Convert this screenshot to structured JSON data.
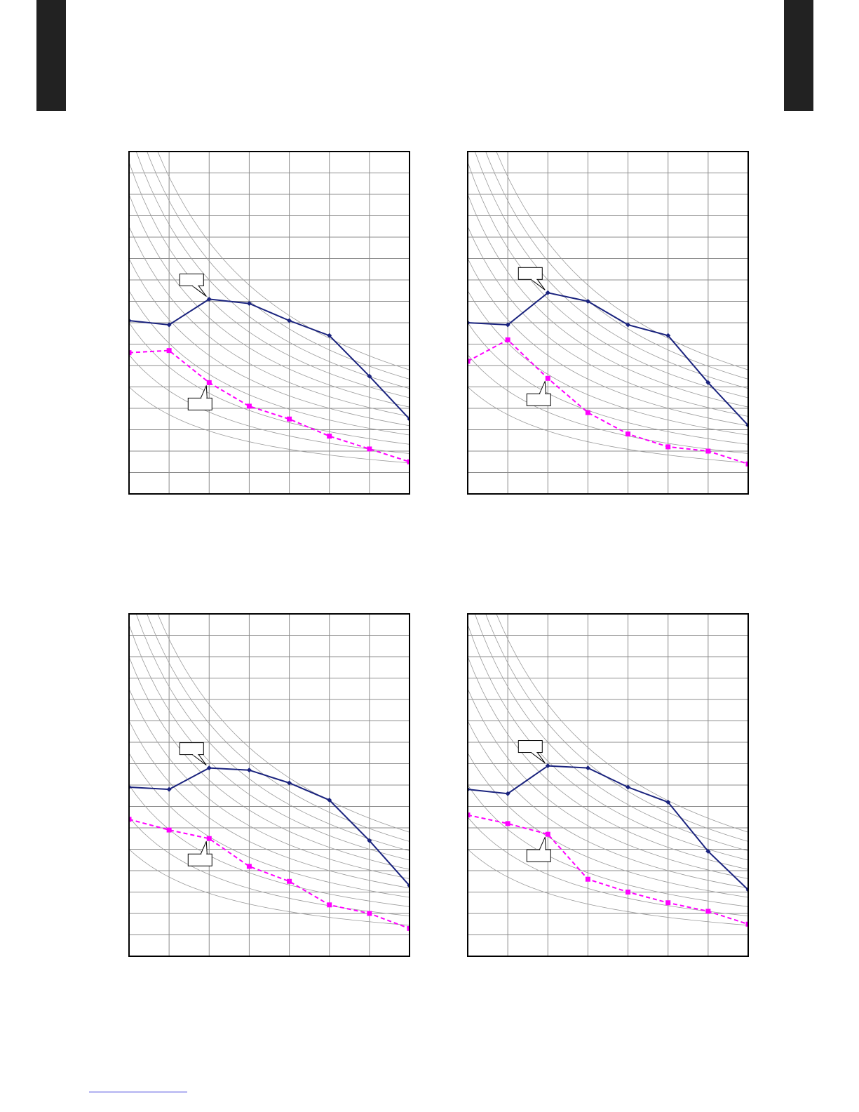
{
  "page": {
    "colors": {
      "tab": "#222222",
      "frame": "#000000",
      "grid": "#8c8c8c",
      "curves": "#9a9a9a",
      "series_a": "#1a237e",
      "series_b": "#ff00ff",
      "link_line": "#2b2bd8"
    }
  },
  "chart_data": [
    {
      "type": "line",
      "title": "",
      "xlabel": "",
      "ylabel": "",
      "x": [
        0,
        1,
        2,
        3,
        4,
        5,
        6,
        7
      ],
      "xlim": [
        0,
        7
      ],
      "ylim": [
        0,
        16
      ],
      "grid": true,
      "background_curves": true,
      "series": [
        {
          "values": [
            8.1,
            7.9,
            9.1,
            8.9,
            8.1,
            7.4,
            5.5,
            3.5
          ],
          "line": "solid",
          "marker": "diamond"
        },
        {
          "values": [
            6.6,
            6.7,
            5.2,
            4.1,
            3.5,
            2.7,
            2.1,
            1.5
          ],
          "line": "dashed",
          "marker": "square"
        }
      ],
      "callouts": [
        {
          "series": 0,
          "text": ""
        },
        {
          "series": 1,
          "text": ""
        }
      ]
    },
    {
      "type": "line",
      "title": "",
      "xlabel": "",
      "ylabel": "",
      "x": [
        0,
        1,
        2,
        3,
        4,
        5,
        6,
        7
      ],
      "xlim": [
        0,
        7
      ],
      "ylim": [
        0,
        16
      ],
      "grid": true,
      "background_curves": true,
      "series": [
        {
          "values": [
            8.0,
            7.9,
            9.4,
            9.0,
            7.9,
            7.4,
            5.2,
            3.2
          ],
          "line": "solid",
          "marker": "diamond"
        },
        {
          "values": [
            6.2,
            7.2,
            5.4,
            3.8,
            2.8,
            2.2,
            2.0,
            1.4
          ],
          "line": "dashed",
          "marker": "square"
        }
      ],
      "callouts": [
        {
          "series": 0,
          "text": ""
        },
        {
          "series": 1,
          "text": ""
        }
      ]
    },
    {
      "type": "line",
      "title": "",
      "xlabel": "",
      "ylabel": "",
      "x": [
        0,
        1,
        2,
        3,
        4,
        5,
        6,
        7
      ],
      "xlim": [
        0,
        7
      ],
      "ylim": [
        0,
        16
      ],
      "grid": true,
      "background_curves": true,
      "series": [
        {
          "values": [
            7.9,
            7.8,
            8.8,
            8.7,
            8.1,
            7.3,
            5.4,
            3.3
          ],
          "line": "solid",
          "marker": "diamond"
        },
        {
          "values": [
            6.4,
            5.9,
            5.5,
            4.2,
            3.5,
            2.4,
            2.0,
            1.3
          ],
          "line": "dashed",
          "marker": "square"
        }
      ],
      "callouts": [
        {
          "series": 0,
          "text": ""
        },
        {
          "series": 1,
          "text": ""
        }
      ]
    },
    {
      "type": "line",
      "title": "",
      "xlabel": "",
      "ylabel": "",
      "x": [
        0,
        1,
        2,
        3,
        4,
        5,
        6,
        7
      ],
      "xlim": [
        0,
        7
      ],
      "ylim": [
        0,
        16
      ],
      "grid": true,
      "background_curves": true,
      "series": [
        {
          "values": [
            7.8,
            7.6,
            8.9,
            8.8,
            7.9,
            7.2,
            4.9,
            3.1
          ],
          "line": "solid",
          "marker": "diamond"
        },
        {
          "values": [
            6.6,
            6.2,
            5.7,
            3.6,
            3.0,
            2.5,
            2.1,
            1.5
          ],
          "line": "dashed",
          "marker": "square"
        }
      ],
      "callouts": [
        {
          "series": 0,
          "text": ""
        },
        {
          "series": 1,
          "text": ""
        }
      ]
    }
  ]
}
